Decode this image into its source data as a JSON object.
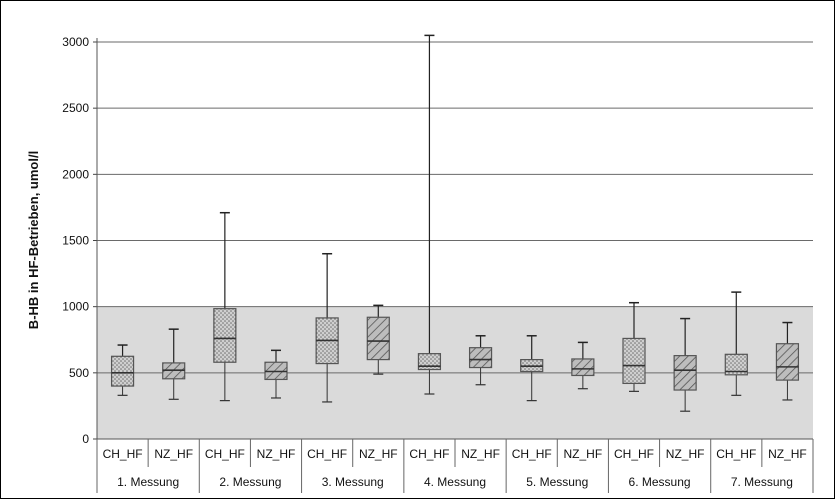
{
  "chart_data": {
    "type": "boxplot",
    "ylabel": "B-HB in HF-Betrieben, umol/l",
    "ylim": [
      0,
      3000
    ],
    "yticks": [
      0,
      500,
      1000,
      1500,
      2000,
      2500,
      3000
    ],
    "reference_band": [
      0,
      1000
    ],
    "groups": [
      "1. Messung",
      "2. Messung",
      "3. Messung",
      "4. Messung",
      "5. Messung",
      "6. Messung",
      "7. Messung"
    ],
    "categories": [
      "CH_HF",
      "NZ_HF",
      "CH_HF",
      "NZ_HF",
      "CH_HF",
      "NZ_HF",
      "CH_HF",
      "NZ_HF",
      "CH_HF",
      "NZ_HF",
      "CH_HF",
      "NZ_HF",
      "CH_HF",
      "NZ_HF"
    ],
    "boxes": [
      {
        "min": 330,
        "q1": 400,
        "median": 500,
        "q3": 625,
        "max": 710
      },
      {
        "min": 300,
        "q1": 455,
        "median": 520,
        "q3": 575,
        "max": 830
      },
      {
        "min": 290,
        "q1": 580,
        "median": 760,
        "q3": 985,
        "max": 1710
      },
      {
        "min": 310,
        "q1": 450,
        "median": 510,
        "q3": 580,
        "max": 670
      },
      {
        "min": 280,
        "q1": 570,
        "median": 745,
        "q3": 915,
        "max": 1400
      },
      {
        "min": 490,
        "q1": 600,
        "median": 740,
        "q3": 920,
        "max": 1010
      },
      {
        "min": 340,
        "q1": 525,
        "median": 550,
        "q3": 645,
        "max": 3050
      },
      {
        "min": 410,
        "q1": 540,
        "median": 600,
        "q3": 690,
        "max": 780
      },
      {
        "min": 290,
        "q1": 510,
        "median": 550,
        "q3": 600,
        "max": 780
      },
      {
        "min": 380,
        "q1": 480,
        "median": 530,
        "q3": 605,
        "max": 730
      },
      {
        "min": 360,
        "q1": 420,
        "median": 555,
        "q3": 760,
        "max": 1030
      },
      {
        "min": 210,
        "q1": 370,
        "median": 520,
        "q3": 630,
        "max": 910
      },
      {
        "min": 330,
        "q1": 485,
        "median": 510,
        "q3": 640,
        "max": 1110
      },
      {
        "min": 295,
        "q1": 445,
        "median": 545,
        "q3": 720,
        "max": 880
      }
    ],
    "series_style": {
      "CH_HF": "dotted-pattern",
      "NZ_HF": "diagonal-hatch"
    },
    "grid": true,
    "colors": {
      "band": "#dadada",
      "box_fill": "#c9c9c9",
      "stroke": "#555555",
      "grid": "#6a6a6a"
    }
  }
}
